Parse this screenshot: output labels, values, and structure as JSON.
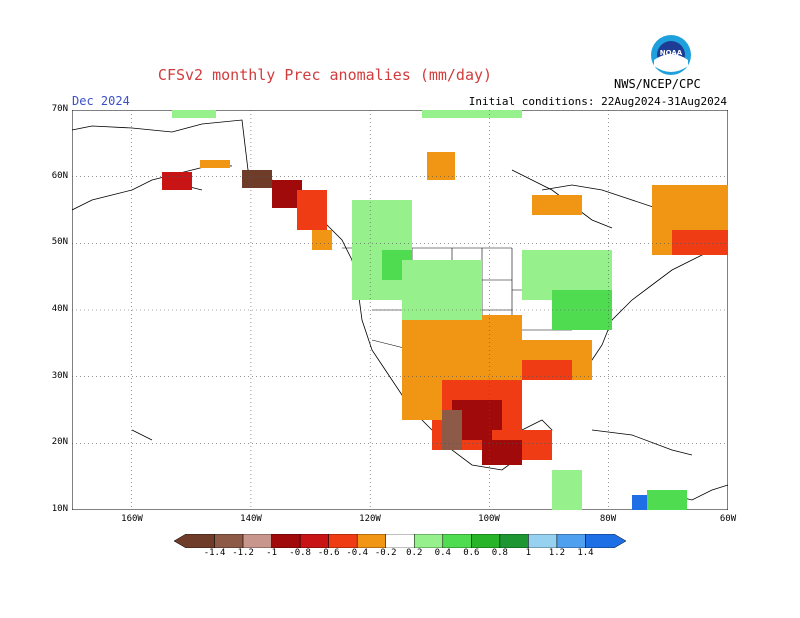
{
  "title": "CFSv2 monthly Prec anomalies (mm/day)",
  "valid_month": "Dec 2024",
  "initial_conditions": "Initial conditions: 22Aug2024-31Aug2024",
  "agency": "NWS/NCEP/CPC",
  "logo_text": "NOAA",
  "map": {
    "lat_labels": [
      "70N",
      "60N",
      "50N",
      "40N",
      "30N",
      "20N",
      "10N"
    ],
    "lon_labels": [
      "160W",
      "140W",
      "120W",
      "100W",
      "80W",
      "60W"
    ],
    "lat_range": [
      10,
      70
    ],
    "lon_range": [
      -170,
      -60
    ],
    "grid": "dotted"
  },
  "legend": {
    "labels": [
      "-1.4",
      "-1.2",
      "-1",
      "-0.8",
      "-0.6",
      "-0.4",
      "-0.2",
      "0.2",
      "0.4",
      "0.6",
      "0.8",
      "1",
      "1.2",
      "1.4"
    ],
    "colors": [
      "#6e3c28",
      "#8c5a46",
      "#c8968c",
      "#a00a0a",
      "#c81414",
      "#f03c14",
      "#f09614",
      "#ffffff",
      "#96f08c",
      "#50dc50",
      "#28b428",
      "#1e9632",
      "#96d2f0",
      "#50a0f0",
      "#1e6ee6"
    ]
  },
  "colors": {
    "title": "#d23c3c",
    "month": "#3c50c8",
    "dry": "#f09614",
    "wet": "#96f08c"
  }
}
